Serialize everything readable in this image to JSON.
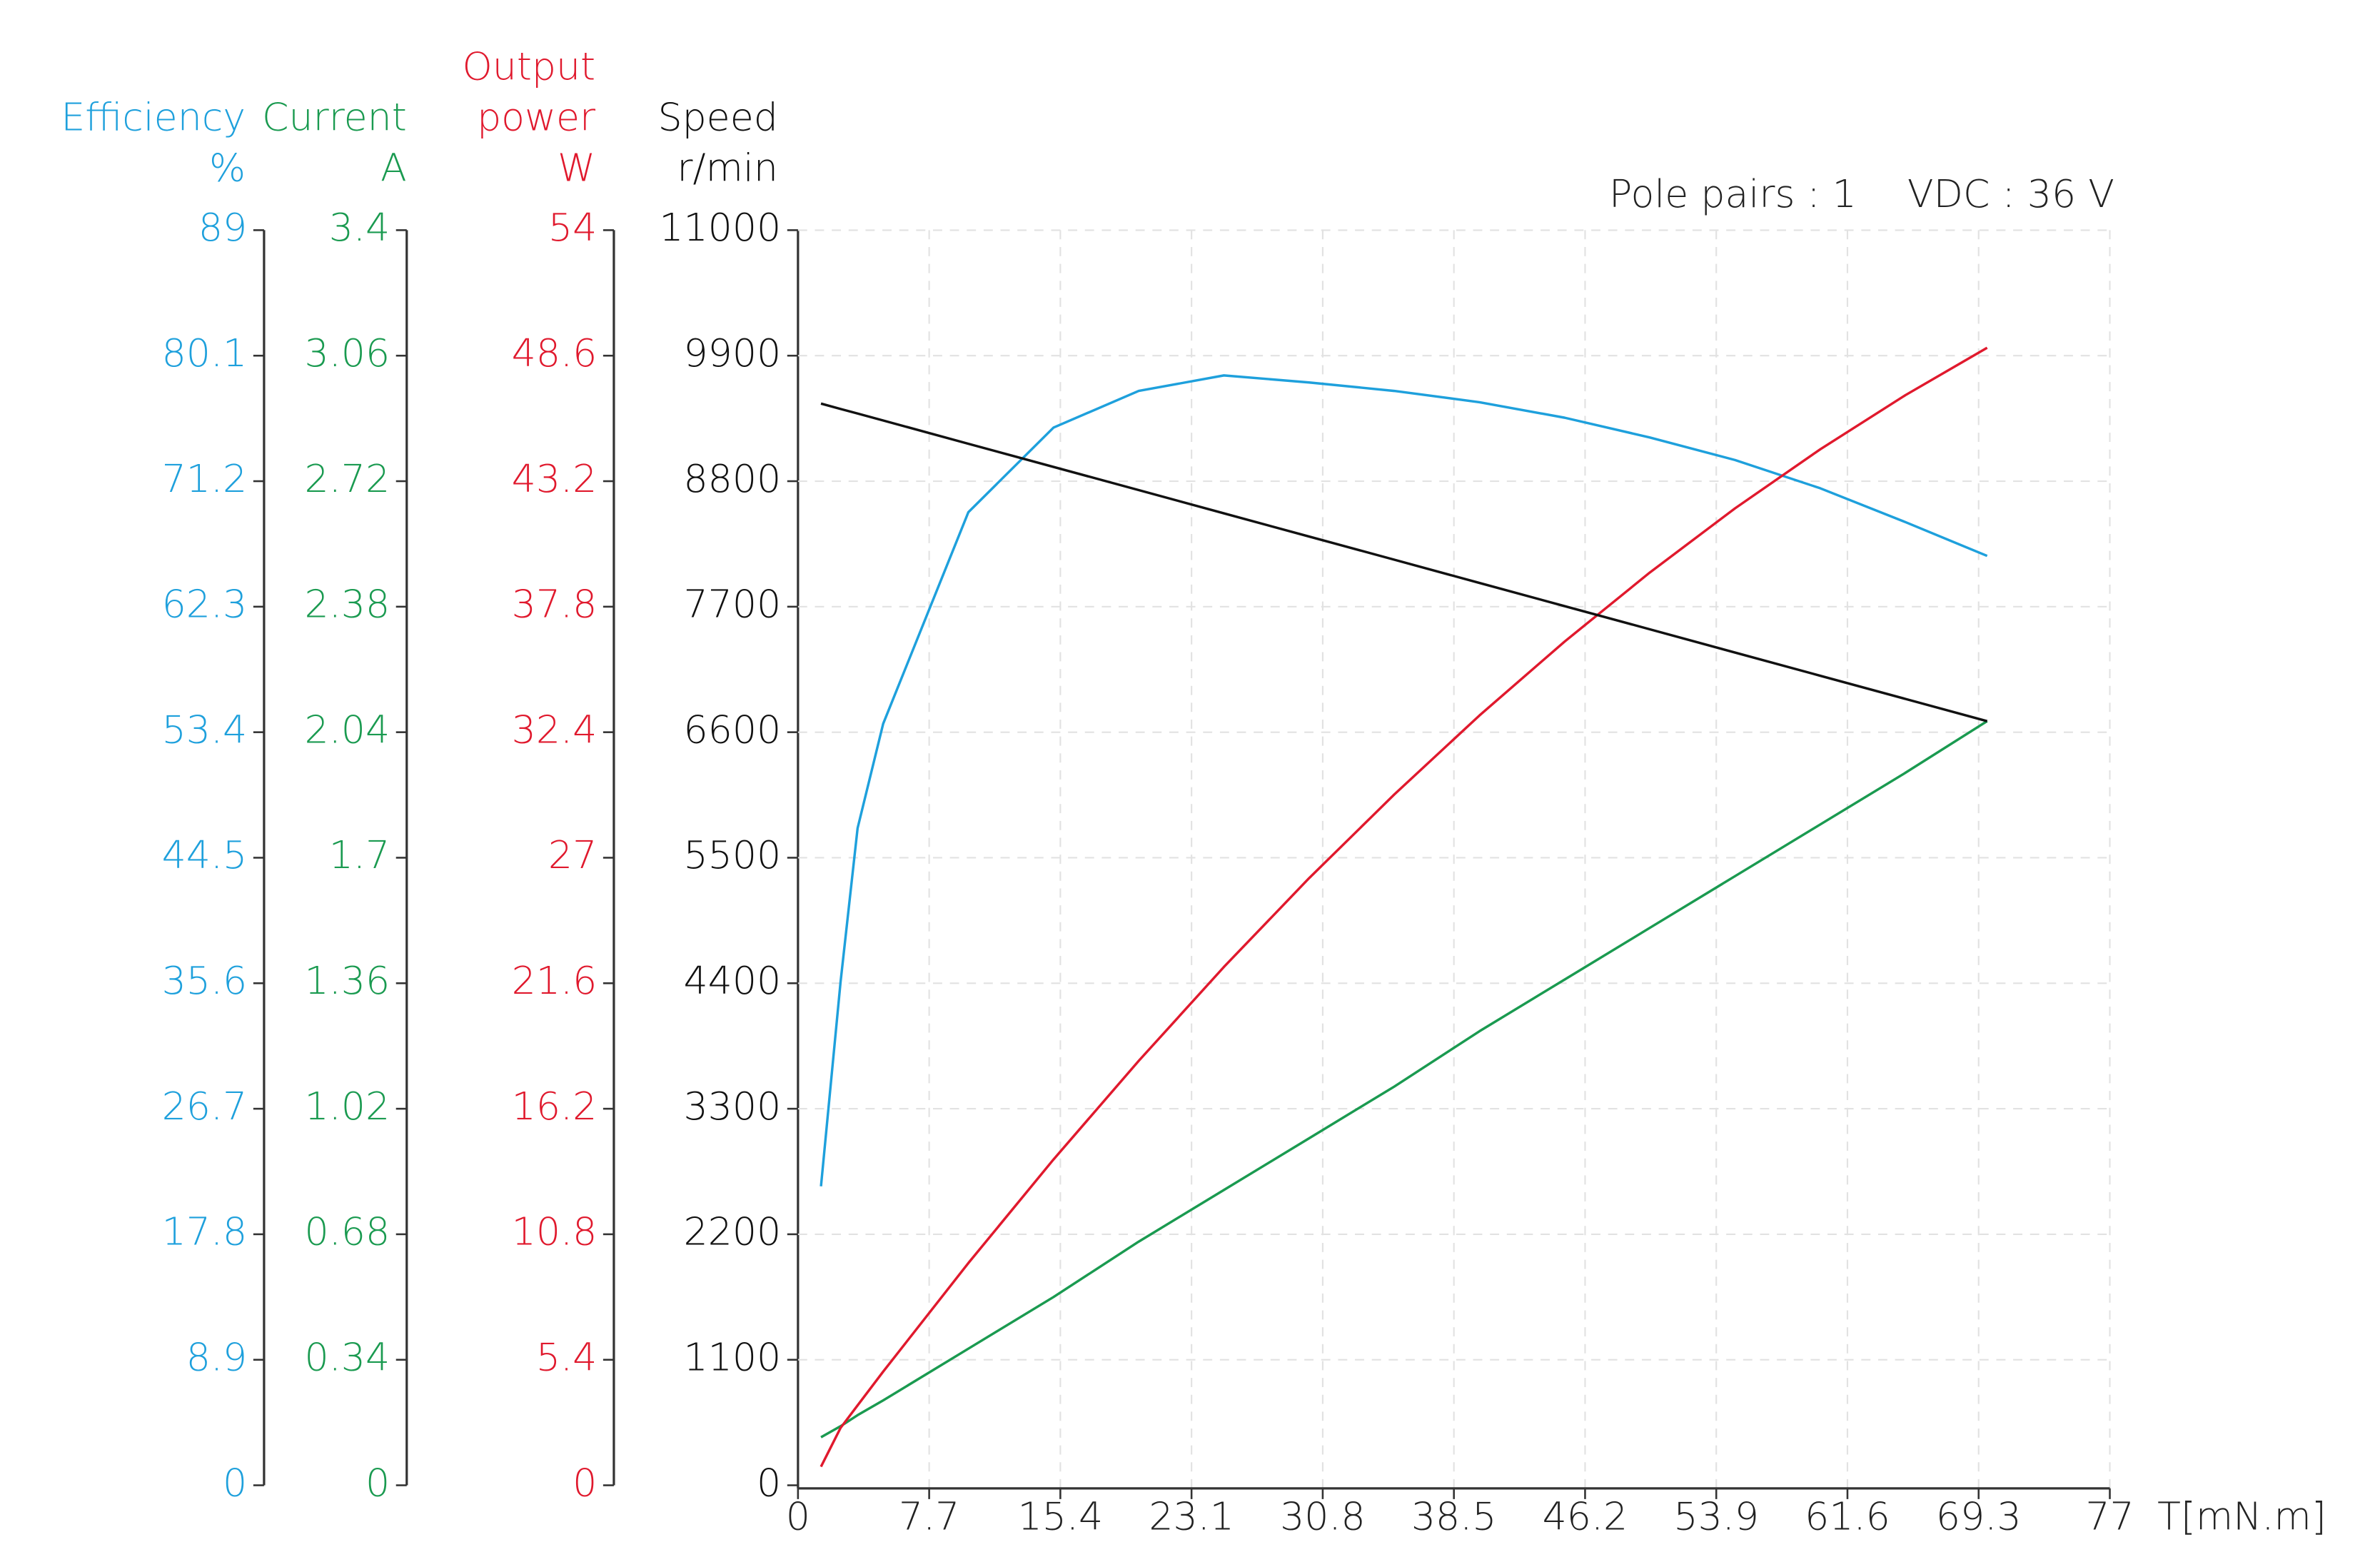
{
  "chart_data": {
    "type": "line",
    "annotations": [
      "Pole pairs : 1",
      "VDC : 36 V"
    ],
    "x_label": "T[mN.m]",
    "xlim": [
      0,
      77
    ],
    "xticks": [
      0,
      7.7,
      15.4,
      23.1,
      30.8,
      38.5,
      46.2,
      53.9,
      61.6,
      69.3,
      77
    ],
    "grid": true,
    "x": [
      1.35,
      2.5,
      3.5,
      5,
      10,
      15,
      20,
      25,
      30,
      35,
      40,
      45,
      50,
      55,
      60,
      65,
      69.8
    ],
    "series": [
      {
        "name": "Efficiency",
        "label_lines": [
          "Efficiency"
        ],
        "unit": "%",
        "color": "#1ea0dc",
        "ylim": [
          0,
          89
        ],
        "yticks": [
          0,
          8.9,
          17.8,
          26.7,
          35.6,
          44.5,
          53.4,
          62.3,
          71.2,
          80.1,
          89
        ],
        "values": [
          21.2,
          35.7,
          46.6,
          54,
          69,
          75,
          77.6,
          78.7,
          78.2,
          77.6,
          76.8,
          75.7,
          74.3,
          72.7,
          70.7,
          68.3,
          65.9
        ]
      },
      {
        "name": "Current",
        "label_lines": [
          "Current"
        ],
        "unit": "A",
        "color": "#1a9a50",
        "ylim": [
          0,
          3.4
        ],
        "yticks": [
          0,
          0.34,
          0.68,
          1.02,
          1.36,
          1.7,
          2.04,
          2.38,
          2.72,
          3.06,
          3.4
        ],
        "values": [
          0.13,
          0.16,
          0.19,
          0.23,
          0.37,
          0.51,
          0.66,
          0.8,
          0.94,
          1.08,
          1.23,
          1.37,
          1.51,
          1.65,
          1.79,
          1.93,
          2.07
        ]
      },
      {
        "name": "Output power",
        "label_lines": [
          "Output",
          "power"
        ],
        "unit": "W",
        "color": "#e0192d",
        "ylim": [
          0,
          54
        ],
        "yticks": [
          0,
          5.4,
          10.8,
          16.2,
          21.6,
          27,
          32.4,
          37.8,
          43.2,
          48.6,
          54
        ],
        "values": [
          0.8,
          2.47,
          3.44,
          4.89,
          9.56,
          14.02,
          18.26,
          22.3,
          26.12,
          29.72,
          33.12,
          36.3,
          39.27,
          42.03,
          44.57,
          46.9,
          48.94
        ]
      },
      {
        "name": "Speed",
        "label_lines": [
          "Speed"
        ],
        "unit": "r/min",
        "color": "#111111",
        "ylim": [
          0,
          11000
        ],
        "yticks": [
          0,
          1100,
          2200,
          3300,
          4400,
          5500,
          6600,
          7700,
          8800,
          9900,
          11000
        ],
        "values": [
          9480,
          9433,
          9393,
          9332,
          9128,
          8925,
          8722,
          8518,
          8315,
          8112,
          7908,
          7705,
          7502,
          7298,
          7095,
          6892,
          6697
        ]
      }
    ]
  }
}
